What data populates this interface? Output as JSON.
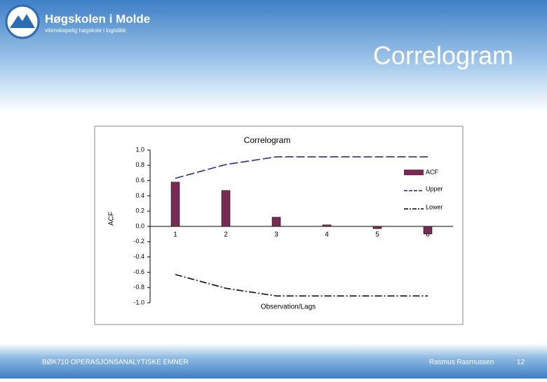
{
  "header": {
    "logo_name": "Høgskolen i Molde",
    "logo_tagline": "vitenskapelig høgskole i logistikk",
    "slide_title": "Correlogram"
  },
  "footer": {
    "course": "BØK710 OPERASJONSANALYTISKE EMNER",
    "author": "Rasmus Rasmussen",
    "page": "12"
  },
  "chart_data": {
    "type": "bar",
    "title": "Correlogram",
    "y_label": "ACF",
    "x_label": "Observation/Lags",
    "categories": [
      "1",
      "2",
      "3",
      "4",
      "5",
      "6"
    ],
    "series": [
      {
        "name": "ACF",
        "type": "bar",
        "color": "#772b55",
        "values": [
          0.58,
          0.47,
          0.12,
          0.02,
          -0.03,
          -0.1
        ]
      },
      {
        "name": "Upper",
        "type": "line",
        "color": "#1f1f8f",
        "values": [
          0.63,
          0.81,
          0.91,
          0.91,
          0.91,
          0.91
        ]
      },
      {
        "name": "Lower",
        "type": "line",
        "color": "#000000",
        "values": [
          -0.63,
          -0.81,
          -0.91,
          -0.91,
          -0.91,
          -0.91
        ]
      }
    ],
    "ylim": [
      -1,
      1
    ],
    "yticks": [
      {
        "value": -1,
        "label": "-1.0"
      },
      -0.8,
      -0.6,
      -0.4,
      -0.2,
      {
        "value": 0,
        "label": "0.0"
      },
      0.2,
      0.4,
      0.6,
      0.8,
      {
        "value": 1,
        "label": "1.0"
      }
    ],
    "legend": "right"
  }
}
